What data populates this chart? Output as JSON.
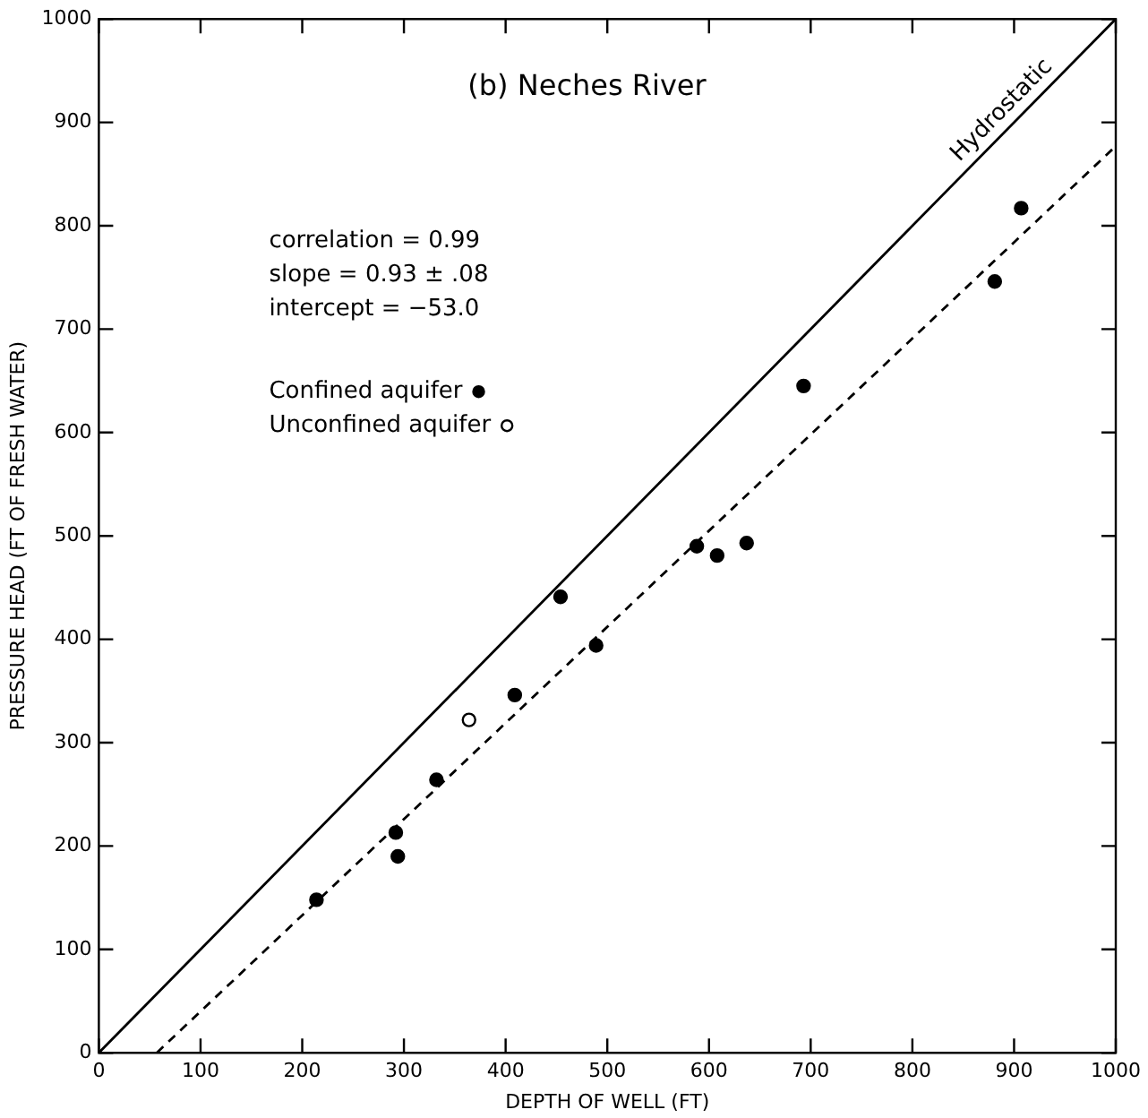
{
  "chart_data": {
    "type": "scatter",
    "title": "(b) Neches River",
    "xlabel": "DEPTH OF WELL (FT)",
    "ylabel": "PRESSURE HEAD (FT OF FRESH WATER)",
    "xlim": [
      0,
      1000
    ],
    "ylim": [
      0,
      1000
    ],
    "xticks": [
      0,
      100,
      200,
      300,
      400,
      500,
      600,
      700,
      800,
      900,
      1000
    ],
    "yticks": [
      0,
      100,
      200,
      300,
      400,
      500,
      600,
      700,
      800,
      900,
      1000
    ],
    "grid": false,
    "legend": "top",
    "marker": "circle",
    "annotations": [
      "correlation = 0.99",
      "slope = 0.93 ± .08",
      "intercept = −53.0"
    ],
    "series": [
      {
        "name": "Confined aquifer",
        "color": "#000000",
        "x": [
          214,
          292,
          294,
          332,
          409,
          454,
          489,
          588,
          608,
          637,
          693,
          881,
          907
        ],
        "values": [
          148,
          213,
          190,
          264,
          346,
          441,
          394,
          490,
          481,
          493,
          645,
          746,
          817
        ]
      },
      {
        "name": "Unconfined aquifer",
        "color": "#000000",
        "x": [
          364
        ],
        "values": [
          322
        ]
      },
      {
        "name": "Hydrostatic",
        "type": "line",
        "marker": "none",
        "line_style": "solid",
        "color": "#000000",
        "x": [
          0,
          1000
        ],
        "values": [
          0,
          1000
        ]
      },
      {
        "type": "line",
        "marker": "none",
        "line_style": "dashed",
        "color": "#000000",
        "x": [
          57,
          1000
        ],
        "values": [
          0,
          877
        ]
      }
    ]
  }
}
